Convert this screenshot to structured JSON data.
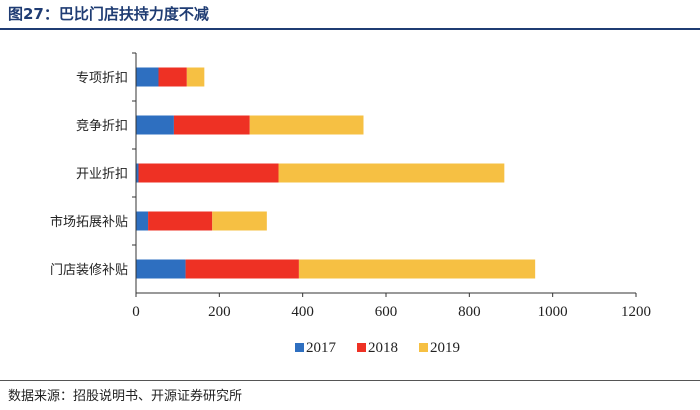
{
  "figure": {
    "title": "图27：巴比门店扶持力度不减",
    "source": "数据来源：招股说明书、开源证券研究所"
  },
  "chart_data": {
    "type": "bar",
    "orientation": "horizontal",
    "stacked": true,
    "title": "",
    "xlabel": "",
    "ylabel": "",
    "categories": [
      "专项折扣",
      "竞争折扣",
      "开业折扣",
      "市场拓展补贴",
      "门店装修补贴"
    ],
    "series": [
      {
        "name": "2017",
        "color": "#2e6fc0",
        "values": [
          54,
          91,
          6,
          29,
          119
        ]
      },
      {
        "name": "2018",
        "color": "#ee3124",
        "values": [
          68,
          182,
          336,
          154,
          272
        ]
      },
      {
        "name": "2019",
        "color": "#f6c043",
        "values": [
          42,
          273,
          542,
          131,
          567
        ]
      }
    ],
    "xlim": [
      0,
      1200
    ],
    "xticks": [
      0,
      200,
      400,
      600,
      800,
      1000,
      1200
    ],
    "grid": false,
    "legend_position": "bottom-center"
  }
}
